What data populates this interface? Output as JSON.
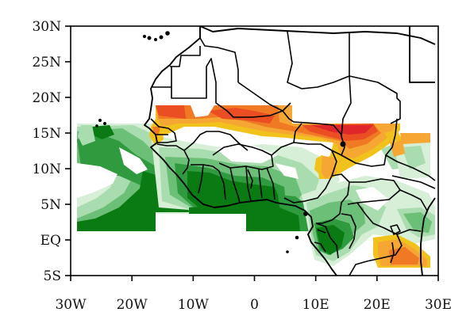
{
  "map": {
    "projection": "equirectangular",
    "lon_range": [
      -30,
      30
    ],
    "lat_range": [
      -5,
      30
    ],
    "x_ticks": [
      "30W",
      "20W",
      "10W",
      "0",
      "10E",
      "20E",
      "30E"
    ],
    "y_ticks": [
      "30N",
      "25N",
      "20N",
      "15N",
      "10N",
      "5N",
      "EQ",
      "5S"
    ],
    "colors": {
      "green_dark": "#0a7a12",
      "green_mid": "#2f9a3e",
      "green_med_light": "#6cbf76",
      "green_light": "#a9dcae",
      "green_pale": "#d6efd6",
      "yellow": "#f2c21c",
      "orange_light": "#f6a733",
      "orange": "#f07a24",
      "red_orange": "#ea4e22",
      "red": "#e0262a"
    }
  }
}
